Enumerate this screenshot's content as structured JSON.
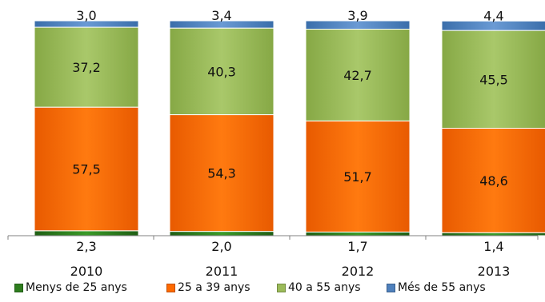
{
  "chart_data": {
    "type": "bar",
    "stacked": true,
    "normalized_to_100": true,
    "categories": [
      "2010",
      "2011",
      "2012",
      "2013"
    ],
    "series": [
      {
        "name": "Menys de 25 anys",
        "values": [
          2.3,
          2.0,
          1.7,
          1.4
        ],
        "labels": [
          "2,3",
          "2,0",
          "1,7",
          "1,4"
        ],
        "color": "#2e7d1e"
      },
      {
        "name": "25 a 39 anys",
        "values": [
          57.5,
          54.3,
          51.7,
          48.6
        ],
        "labels": [
          "57,5",
          "54,3",
          "51,7",
          "48,6"
        ],
        "color": "#ff6a00"
      },
      {
        "name": "40 a 55 anys",
        "values": [
          37.2,
          40.3,
          42.7,
          45.5
        ],
        "labels": [
          "37,2",
          "40,3",
          "42,7",
          "45,5"
        ],
        "color": "#9bbb59"
      },
      {
        "name": "Més de 55 anys",
        "values": [
          3.0,
          3.4,
          3.9,
          4.4
        ],
        "labels": [
          "3,0",
          "3,4",
          "3,9",
          "4,4"
        ],
        "color": "#4f81bd"
      }
    ],
    "ylim": [
      0,
      100
    ],
    "grid": false,
    "legend_position": "bottom"
  }
}
